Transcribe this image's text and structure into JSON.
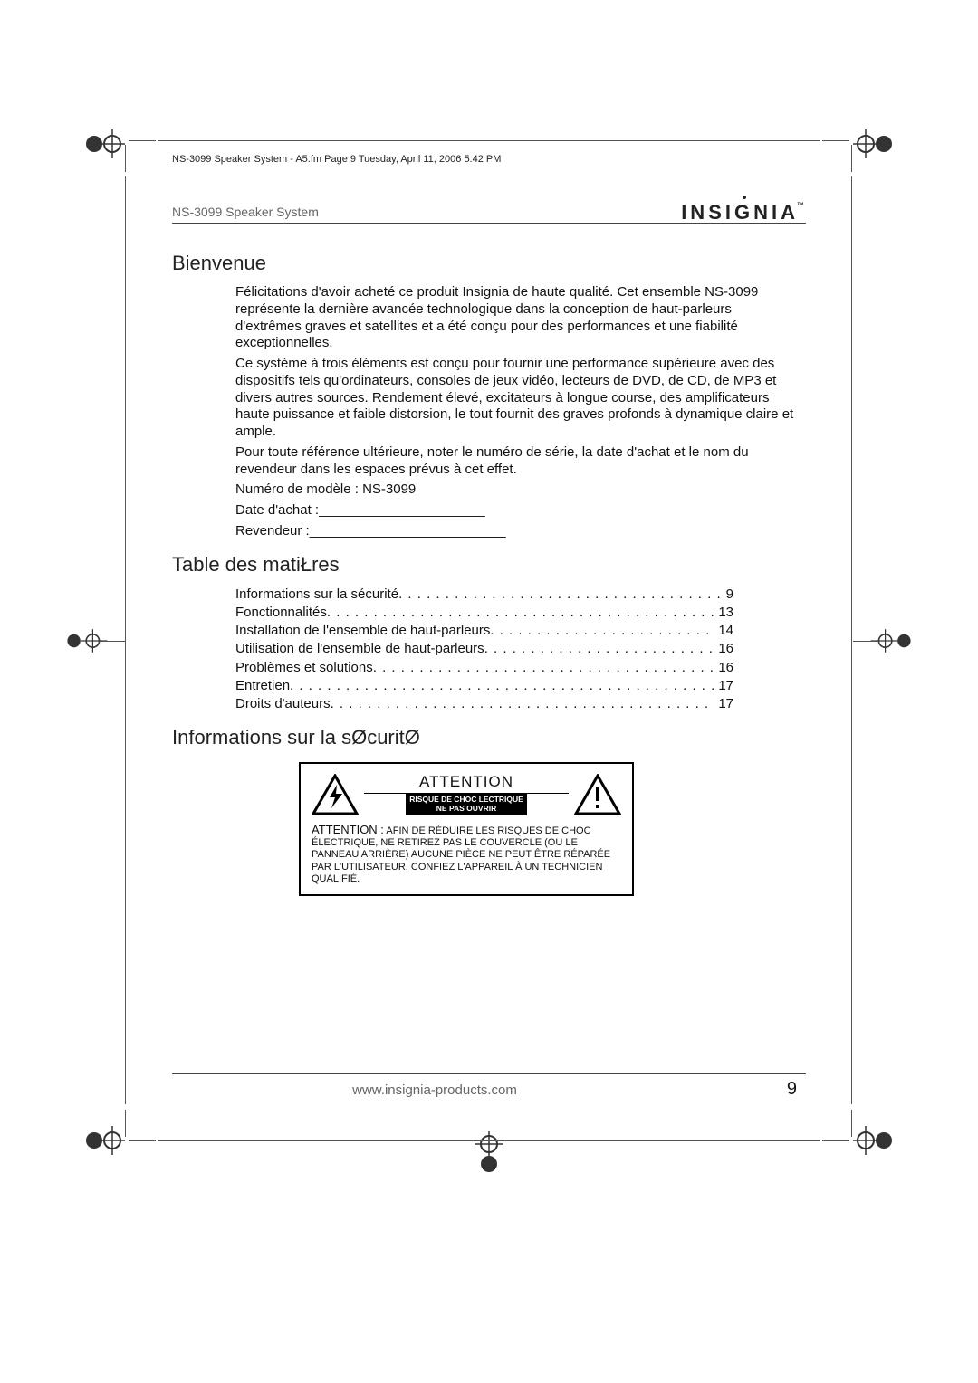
{
  "meta": {
    "header_line": "NS-3099 Speaker System - A5.fm  Page 9  Tuesday, April 11, 2006  5:42 PM",
    "product_title": "NS-3099 Speaker System",
    "brand": "INSIGNIA",
    "footer_url": "www.insignia-products.com",
    "page_number": "9"
  },
  "sections": {
    "welcome_heading": "Bienvenue",
    "welcome_p1": "Félicitations d'avoir acheté ce produit Insignia de haute qualité. Cet ensemble NS-3099 représente la dernière avancée technologique dans la conception de haut-parleurs d'extrêmes graves et satellites et a été conçu pour des performances et une fiabilité exceptionnelles.",
    "welcome_p2": "Ce système à trois éléments est conçu pour fournir une performance supérieure avec des dispositifs tels qu'ordinateurs, consoles de jeux vidéo, lecteurs de DVD, de CD, de MP3 et divers autres sources. Rendement élevé, excitateurs à longue course, des amplificateurs haute puissance et faible distorsion, le tout fournit des graves profonds à dynamique claire et ample.",
    "welcome_p3": "Pour toute référence ultérieure, noter le numéro de série, la date d'achat et le nom du revendeur dans les espaces prévus à cet effet.",
    "model_line": "Numéro de modèle : NS-3099",
    "date_line": "Date d'achat :______________________",
    "dealer_line": "Revendeur :__________________________",
    "toc_heading": "Table des matiŁres",
    "safety_heading": "Informations sur la sØcuritØ"
  },
  "toc": [
    {
      "label": "Informations sur la sécurité",
      "page": "9"
    },
    {
      "label": "Fonctionnalités",
      "page": "13"
    },
    {
      "label": "Installation de l'ensemble de haut-parleurs",
      "page": "14"
    },
    {
      "label": "Utilisation de l'ensemble de haut-parleurs",
      "page": "16"
    },
    {
      "label": "Problèmes et solutions",
      "page": "16"
    },
    {
      "label": "Entretien",
      "page": "17"
    },
    {
      "label": "Droits d'auteurs",
      "page": "17"
    }
  ],
  "warning": {
    "title": "ATTENTION",
    "sub1": "RISQUE DE CHOC  LECTRIQUE",
    "sub2": "NE PAS OUVRIR",
    "body_lead": "ATTENTION :",
    "body": " AFIN DE RÉDUIRE LES RISQUES DE CHOC ÉLECTRIQUE, NE RETIREZ PAS LE COUVERCLE (OU LE PANNEAU ARRIÈRE) AUCUNE PIÈCE NE PEUT ÊTRE RÉPARÉE PAR L'UTILISATEUR. CONFIEZ L'APPAREIL À UN TECHNICIEN QUALIFIÉ."
  },
  "colors": {
    "text": "#111111",
    "muted": "#666666",
    "line": "#444444",
    "black": "#000000",
    "background": "#ffffff"
  }
}
